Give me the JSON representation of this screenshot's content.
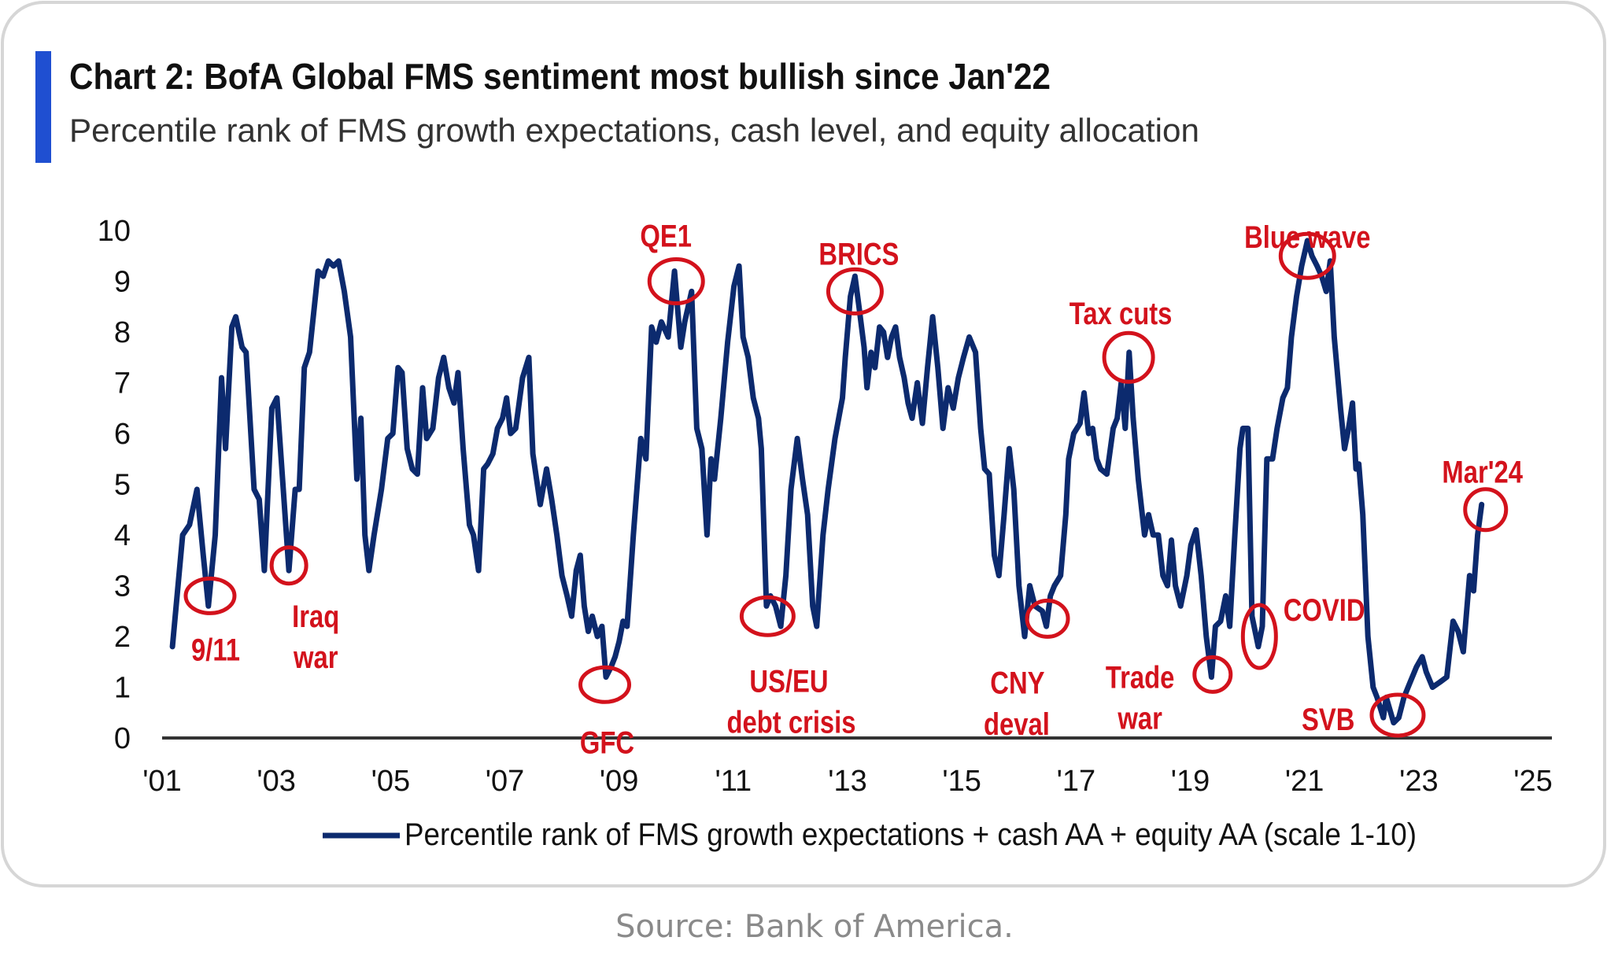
{
  "header": {
    "title": "Chart 2: BofA Global FMS sentiment most bullish since Jan'22",
    "subtitle": "Percentile rank of FMS growth expectations, cash level, and equity allocation"
  },
  "source": "Source: Bank of America.",
  "colors": {
    "accent_bar": "#1f4fd1",
    "line": "#0c2a6e",
    "annotation": "#d3121c",
    "axis": "#333333"
  },
  "chart_data": {
    "type": "line",
    "title": "Chart 2: BofA Global FMS sentiment most bullish since Jan'22",
    "xlabel": "",
    "ylabel": "",
    "xlim": [
      2001,
      2025
    ],
    "ylim": [
      0,
      10
    ],
    "grid": false,
    "legend_position": "bottom",
    "y_ticks": [
      {
        "v": 0,
        "label": "0"
      },
      {
        "v": 1,
        "label": "1"
      },
      {
        "v": 2,
        "label": "2"
      },
      {
        "v": 3,
        "label": "3"
      },
      {
        "v": 4,
        "label": "4"
      },
      {
        "v": 5,
        "label": "5"
      },
      {
        "v": 6,
        "label": "6"
      },
      {
        "v": 7,
        "label": "7"
      },
      {
        "v": 8,
        "label": "8"
      },
      {
        "v": 9,
        "label": "9"
      },
      {
        "v": 10,
        "label": "10"
      }
    ],
    "x_ticks": [
      {
        "v": 2001,
        "label": "'01"
      },
      {
        "v": 2003,
        "label": "'03"
      },
      {
        "v": 2005,
        "label": "'05"
      },
      {
        "v": 2007,
        "label": "'07"
      },
      {
        "v": 2009,
        "label": "'09"
      },
      {
        "v": 2011,
        "label": "'11"
      },
      {
        "v": 2013,
        "label": "'13"
      },
      {
        "v": 2015,
        "label": "'15"
      },
      {
        "v": 2017,
        "label": "'17"
      },
      {
        "v": 2019,
        "label": "'19"
      },
      {
        "v": 2021,
        "label": "'21"
      },
      {
        "v": 2023,
        "label": "'23"
      },
      {
        "v": 2025,
        "label": "'25"
      }
    ],
    "series": [
      {
        "name": "Percentile rank of FMS growth expectations + cash AA + equity AA (scale 1-10)",
        "points": [
          [
            2001.18,
            1.8
          ],
          [
            2001.36,
            4.0
          ],
          [
            2001.48,
            4.2
          ],
          [
            2001.61,
            4.9
          ],
          [
            2001.72,
            3.6
          ],
          [
            2001.81,
            2.6
          ],
          [
            2001.93,
            4.0
          ],
          [
            2002.04,
            7.1
          ],
          [
            2002.11,
            5.7
          ],
          [
            2002.22,
            8.1
          ],
          [
            2002.29,
            8.3
          ],
          [
            2002.4,
            7.7
          ],
          [
            2002.47,
            7.6
          ],
          [
            2002.61,
            4.9
          ],
          [
            2002.7,
            4.7
          ],
          [
            2002.79,
            3.3
          ],
          [
            2002.92,
            6.5
          ],
          [
            2003.01,
            6.7
          ],
          [
            2003.22,
            3.3
          ],
          [
            2003.33,
            4.9
          ],
          [
            2003.4,
            4.9
          ],
          [
            2003.49,
            7.3
          ],
          [
            2003.58,
            7.6
          ],
          [
            2003.73,
            9.2
          ],
          [
            2003.82,
            9.1
          ],
          [
            2003.91,
            9.4
          ],
          [
            2004.0,
            9.3
          ],
          [
            2004.09,
            9.4
          ],
          [
            2004.19,
            8.8
          ],
          [
            2004.3,
            7.9
          ],
          [
            2004.41,
            5.1
          ],
          [
            2004.48,
            6.3
          ],
          [
            2004.55,
            4.0
          ],
          [
            2004.62,
            3.3
          ],
          [
            2004.71,
            4.0
          ],
          [
            2004.84,
            4.9
          ],
          [
            2004.95,
            5.9
          ],
          [
            2005.04,
            6.0
          ],
          [
            2005.13,
            7.3
          ],
          [
            2005.2,
            7.2
          ],
          [
            2005.29,
            5.7
          ],
          [
            2005.38,
            5.3
          ],
          [
            2005.47,
            5.2
          ],
          [
            2005.56,
            6.9
          ],
          [
            2005.63,
            5.9
          ],
          [
            2005.74,
            6.1
          ],
          [
            2005.84,
            7.1
          ],
          [
            2005.93,
            7.5
          ],
          [
            2006.02,
            6.9
          ],
          [
            2006.11,
            6.6
          ],
          [
            2006.18,
            7.2
          ],
          [
            2006.27,
            5.7
          ],
          [
            2006.38,
            4.2
          ],
          [
            2006.45,
            4.0
          ],
          [
            2006.54,
            3.3
          ],
          [
            2006.63,
            5.3
          ],
          [
            2006.7,
            5.4
          ],
          [
            2006.79,
            5.6
          ],
          [
            2006.87,
            6.1
          ],
          [
            2006.96,
            6.3
          ],
          [
            2007.03,
            6.7
          ],
          [
            2007.1,
            6.0
          ],
          [
            2007.19,
            6.1
          ],
          [
            2007.31,
            7.1
          ],
          [
            2007.42,
            7.5
          ],
          [
            2007.49,
            5.6
          ],
          [
            2007.62,
            4.6
          ],
          [
            2007.73,
            5.3
          ],
          [
            2007.82,
            4.7
          ],
          [
            2007.91,
            4.0
          ],
          [
            2008.0,
            3.2
          ],
          [
            2008.09,
            2.8
          ],
          [
            2008.17,
            2.4
          ],
          [
            2008.25,
            3.3
          ],
          [
            2008.32,
            3.6
          ],
          [
            2008.39,
            2.6
          ],
          [
            2008.46,
            2.1
          ],
          [
            2008.53,
            2.4
          ],
          [
            2008.62,
            2.0
          ],
          [
            2008.7,
            2.2
          ],
          [
            2008.77,
            1.2
          ],
          [
            2008.86,
            1.4
          ],
          [
            2008.93,
            1.6
          ],
          [
            2009.0,
            1.9
          ],
          [
            2009.07,
            2.3
          ],
          [
            2009.14,
            2.2
          ],
          [
            2009.25,
            4.0
          ],
          [
            2009.38,
            5.9
          ],
          [
            2009.47,
            5.5
          ],
          [
            2009.57,
            8.1
          ],
          [
            2009.65,
            7.8
          ],
          [
            2009.74,
            8.2
          ],
          [
            2009.86,
            7.9
          ],
          [
            2009.97,
            9.2
          ],
          [
            2010.08,
            7.7
          ],
          [
            2010.15,
            8.2
          ],
          [
            2010.27,
            8.8
          ],
          [
            2010.36,
            6.1
          ],
          [
            2010.45,
            5.7
          ],
          [
            2010.54,
            4.0
          ],
          [
            2010.61,
            5.5
          ],
          [
            2010.67,
            5.1
          ],
          [
            2010.78,
            6.3
          ],
          [
            2010.9,
            7.8
          ],
          [
            2011.01,
            8.9
          ],
          [
            2011.1,
            9.3
          ],
          [
            2011.17,
            7.9
          ],
          [
            2011.26,
            7.5
          ],
          [
            2011.35,
            6.7
          ],
          [
            2011.44,
            6.3
          ],
          [
            2011.49,
            5.7
          ],
          [
            2011.58,
            2.6
          ],
          [
            2011.65,
            2.8
          ],
          [
            2011.74,
            2.6
          ],
          [
            2011.83,
            2.2
          ],
          [
            2011.92,
            3.2
          ],
          [
            2012.01,
            4.9
          ],
          [
            2012.12,
            5.9
          ],
          [
            2012.21,
            5.1
          ],
          [
            2012.3,
            4.4
          ],
          [
            2012.39,
            2.6
          ],
          [
            2012.46,
            2.2
          ],
          [
            2012.57,
            4.0
          ],
          [
            2012.66,
            4.9
          ],
          [
            2012.78,
            5.9
          ],
          [
            2012.91,
            6.7
          ],
          [
            2012.96,
            7.5
          ],
          [
            2013.05,
            8.7
          ],
          [
            2013.13,
            9.1
          ],
          [
            2013.2,
            8.5
          ],
          [
            2013.29,
            7.7
          ],
          [
            2013.34,
            6.9
          ],
          [
            2013.41,
            7.6
          ],
          [
            2013.48,
            7.3
          ],
          [
            2013.56,
            8.1
          ],
          [
            2013.63,
            8.0
          ],
          [
            2013.7,
            7.5
          ],
          [
            2013.77,
            7.9
          ],
          [
            2013.84,
            8.1
          ],
          [
            2013.91,
            7.5
          ],
          [
            2013.99,
            7.1
          ],
          [
            2014.06,
            6.6
          ],
          [
            2014.13,
            6.3
          ],
          [
            2014.22,
            7.0
          ],
          [
            2014.31,
            6.2
          ],
          [
            2014.4,
            7.3
          ],
          [
            2014.49,
            8.3
          ],
          [
            2014.58,
            7.3
          ],
          [
            2014.67,
            6.1
          ],
          [
            2014.76,
            6.9
          ],
          [
            2014.85,
            6.5
          ],
          [
            2014.94,
            7.1
          ],
          [
            2015.03,
            7.5
          ],
          [
            2015.13,
            7.9
          ],
          [
            2015.24,
            7.6
          ],
          [
            2015.33,
            6.1
          ],
          [
            2015.4,
            5.3
          ],
          [
            2015.48,
            5.2
          ],
          [
            2015.57,
            3.6
          ],
          [
            2015.65,
            3.2
          ],
          [
            2015.74,
            4.4
          ],
          [
            2015.83,
            5.7
          ],
          [
            2015.91,
            4.9
          ],
          [
            2016.0,
            3.0
          ],
          [
            2016.1,
            2.0
          ],
          [
            2016.19,
            3.0
          ],
          [
            2016.28,
            2.6
          ],
          [
            2016.41,
            2.5
          ],
          [
            2016.48,
            2.2
          ],
          [
            2016.55,
            2.8
          ],
          [
            2016.62,
            3.0
          ],
          [
            2016.73,
            3.2
          ],
          [
            2016.82,
            4.4
          ],
          [
            2016.87,
            5.5
          ],
          [
            2016.96,
            6.0
          ],
          [
            2017.07,
            6.2
          ],
          [
            2017.14,
            6.8
          ],
          [
            2017.22,
            6.0
          ],
          [
            2017.29,
            6.1
          ],
          [
            2017.36,
            5.5
          ],
          [
            2017.43,
            5.3
          ],
          [
            2017.54,
            5.2
          ],
          [
            2017.65,
            6.1
          ],
          [
            2017.72,
            6.3
          ],
          [
            2017.79,
            7.0
          ],
          [
            2017.86,
            6.1
          ],
          [
            2017.93,
            7.6
          ],
          [
            2018.0,
            6.3
          ],
          [
            2018.09,
            5.1
          ],
          [
            2018.2,
            4.0
          ],
          [
            2018.27,
            4.4
          ],
          [
            2018.35,
            4.0
          ],
          [
            2018.44,
            4.0
          ],
          [
            2018.52,
            3.2
          ],
          [
            2018.6,
            3.0
          ],
          [
            2018.67,
            3.9
          ],
          [
            2018.74,
            3.0
          ],
          [
            2018.83,
            2.6
          ],
          [
            2018.94,
            3.2
          ],
          [
            2019.01,
            3.8
          ],
          [
            2019.1,
            4.1
          ],
          [
            2019.19,
            3.2
          ],
          [
            2019.28,
            2.0
          ],
          [
            2019.37,
            1.2
          ],
          [
            2019.44,
            2.2
          ],
          [
            2019.53,
            2.3
          ],
          [
            2019.62,
            2.8
          ],
          [
            2019.69,
            2.2
          ],
          [
            2019.78,
            4.0
          ],
          [
            2019.87,
            5.7
          ],
          [
            2019.92,
            6.1
          ],
          [
            2020.01,
            6.1
          ],
          [
            2020.08,
            2.4
          ],
          [
            2020.19,
            1.8
          ],
          [
            2020.26,
            2.2
          ],
          [
            2020.34,
            5.5
          ],
          [
            2020.44,
            5.5
          ],
          [
            2020.52,
            6.1
          ],
          [
            2020.62,
            6.7
          ],
          [
            2020.7,
            6.9
          ],
          [
            2020.77,
            7.9
          ],
          [
            2020.86,
            8.7
          ],
          [
            2020.95,
            9.3
          ],
          [
            2021.05,
            9.8
          ],
          [
            2021.13,
            9.5
          ],
          [
            2021.22,
            9.3
          ],
          [
            2021.3,
            9.1
          ],
          [
            2021.38,
            8.8
          ],
          [
            2021.45,
            9.4
          ],
          [
            2021.52,
            7.9
          ],
          [
            2021.63,
            6.5
          ],
          [
            2021.7,
            5.7
          ],
          [
            2021.77,
            6.1
          ],
          [
            2021.84,
            6.6
          ],
          [
            2021.9,
            5.3
          ],
          [
            2021.95,
            5.4
          ],
          [
            2022.02,
            4.4
          ],
          [
            2022.11,
            2.0
          ],
          [
            2022.2,
            1.0
          ],
          [
            2022.27,
            0.8
          ],
          [
            2022.38,
            0.4
          ],
          [
            2022.43,
            0.8
          ],
          [
            2022.56,
            0.3
          ],
          [
            2022.65,
            0.4
          ],
          [
            2022.74,
            0.8
          ],
          [
            2022.85,
            1.1
          ],
          [
            2022.96,
            1.4
          ],
          [
            2023.06,
            1.6
          ],
          [
            2023.13,
            1.3
          ],
          [
            2023.24,
            1.0
          ],
          [
            2023.37,
            1.1
          ],
          [
            2023.49,
            1.2
          ],
          [
            2023.6,
            2.3
          ],
          [
            2023.69,
            2.1
          ],
          [
            2023.78,
            1.7
          ],
          [
            2023.89,
            3.2
          ],
          [
            2023.96,
            2.9
          ],
          [
            2024.03,
            4.0
          ],
          [
            2024.1,
            4.6
          ]
        ]
      }
    ],
    "annotations": [
      {
        "lines": [
          "9/11"
        ],
        "x": 2001.84,
        "y": 2.8
      },
      {
        "lines": [
          "Iraq",
          "war"
        ],
        "x": 2003.22,
        "y": 3.4
      },
      {
        "lines": [
          "GFC"
        ],
        "x": 2008.75,
        "y": 1.05
      },
      {
        "lines": [
          "QE1"
        ],
        "x": 2010.0,
        "y": 9.0
      },
      {
        "lines": [
          "US/EU",
          "debt crisis"
        ],
        "x": 2011.6,
        "y": 2.4
      },
      {
        "lines": [
          "BRICS"
        ],
        "x": 2013.13,
        "y": 8.8
      },
      {
        "lines": [
          "CNY",
          "deval"
        ],
        "x": 2016.5,
        "y": 2.35
      },
      {
        "lines": [
          "Tax cuts"
        ],
        "x": 2017.92,
        "y": 7.5
      },
      {
        "lines": [
          "Trade",
          "war"
        ],
        "x": 2019.39,
        "y": 1.25
      },
      {
        "lines": [
          "COVID"
        ],
        "x": 2020.21,
        "y": 2.0
      },
      {
        "lines": [
          "SVB"
        ],
        "x": 2022.63,
        "y": 0.45
      },
      {
        "lines": [
          "Blue wave"
        ],
        "x": 2021.05,
        "y": 9.5
      },
      {
        "lines": [
          "Mar'24"
        ],
        "x": 2024.17,
        "y": 4.5
      }
    ]
  }
}
